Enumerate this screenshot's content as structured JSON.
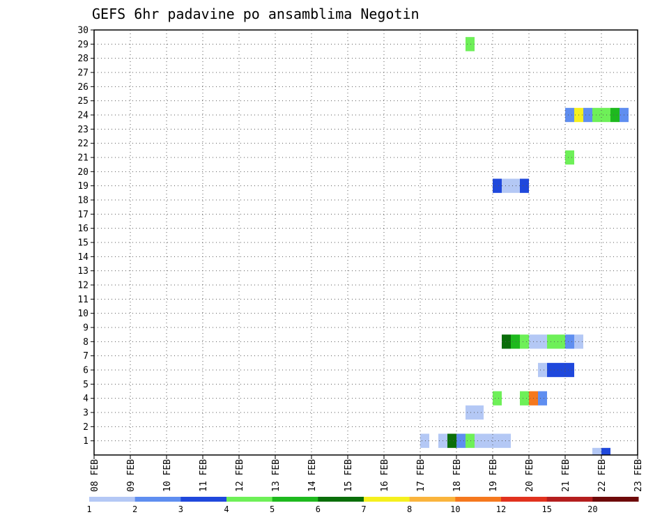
{
  "colors": {
    "frame": "#000000",
    "grid": "#555555",
    "background": "#ffffff"
  },
  "chart_data": {
    "type": "heatmap",
    "title": "GEFS 6hr padavine po ansamblima Negotin",
    "xlabel": "",
    "ylabel": "",
    "x_ticks": [
      "08 FEB",
      "09 FEB",
      "10 FEB",
      "11 FEB",
      "12 FEB",
      "13 FEB",
      "14 FEB",
      "15 FEB",
      "16 FEB",
      "17 FEB",
      "18 FEB",
      "19 FEB",
      "20 FEB",
      "21 FEB",
      "22 FEB",
      "23 FEB"
    ],
    "x_range_days": [
      0,
      15
    ],
    "y_ticks": [
      "1",
      "2",
      "3",
      "4",
      "5",
      "6",
      "7",
      "8",
      "9",
      "10",
      "11",
      "12",
      "13",
      "14",
      "15",
      "16",
      "17",
      "18",
      "19",
      "20",
      "21",
      "22",
      "23",
      "24",
      "25",
      "26",
      "27",
      "28",
      "29",
      "30"
    ],
    "y_range": [
      0,
      30
    ],
    "grid": true,
    "legend_position": "bottom",
    "legend": {
      "labels": [
        "1",
        "2",
        "3",
        "4",
        "5",
        "6",
        "7",
        "8",
        "10",
        "12",
        "15",
        "20"
      ],
      "colors": [
        "#b4c8f5",
        "#5f8ef0",
        "#1f48dc",
        "#6ef058",
        "#1eb91e",
        "#0a6e0a",
        "#f5f01e",
        "#fab43c",
        "#f5781e",
        "#e1321e",
        "#b41e1e",
        "#6e0a0a"
      ]
    },
    "cells": [
      {
        "member": 0,
        "start_day": 13.75,
        "end_day": 14.0,
        "color": "#b4c8f5"
      },
      {
        "member": 0,
        "start_day": 14.0,
        "end_day": 14.25,
        "color": "#1f48dc"
      },
      {
        "member": 1,
        "start_day": 9.0,
        "end_day": 9.25,
        "color": "#b4c8f5"
      },
      {
        "member": 1,
        "start_day": 9.5,
        "end_day": 9.75,
        "color": "#b4c8f5"
      },
      {
        "member": 1,
        "start_day": 9.75,
        "end_day": 10.0,
        "color": "#0a6e0a"
      },
      {
        "member": 1,
        "start_day": 10.0,
        "end_day": 10.25,
        "color": "#5f8ef0"
      },
      {
        "member": 1,
        "start_day": 10.25,
        "end_day": 10.5,
        "color": "#6ef058"
      },
      {
        "member": 1,
        "start_day": 10.5,
        "end_day": 11.5,
        "color": "#b4c8f5"
      },
      {
        "member": 3,
        "start_day": 10.25,
        "end_day": 10.75,
        "color": "#b4c8f5"
      },
      {
        "member": 4,
        "start_day": 11.0,
        "end_day": 11.25,
        "color": "#6ef058"
      },
      {
        "member": 4,
        "start_day": 11.75,
        "end_day": 12.0,
        "color": "#6ef058"
      },
      {
        "member": 4,
        "start_day": 12.0,
        "end_day": 12.25,
        "color": "#f5781e"
      },
      {
        "member": 4,
        "start_day": 12.25,
        "end_day": 12.5,
        "color": "#5f8ef0"
      },
      {
        "member": 6,
        "start_day": 12.25,
        "end_day": 12.5,
        "color": "#b4c8f5"
      },
      {
        "member": 6,
        "start_day": 12.5,
        "end_day": 13.25,
        "color": "#1f48dc"
      },
      {
        "member": 8,
        "start_day": 11.25,
        "end_day": 11.5,
        "color": "#0a6e0a"
      },
      {
        "member": 8,
        "start_day": 11.5,
        "end_day": 11.75,
        "color": "#1eb91e"
      },
      {
        "member": 8,
        "start_day": 11.75,
        "end_day": 12.0,
        "color": "#6ef058"
      },
      {
        "member": 8,
        "start_day": 12.0,
        "end_day": 12.5,
        "color": "#b4c8f5"
      },
      {
        "member": 8,
        "start_day": 12.5,
        "end_day": 13.0,
        "color": "#6ef058"
      },
      {
        "member": 8,
        "start_day": 13.0,
        "end_day": 13.25,
        "color": "#5f8ef0"
      },
      {
        "member": 8,
        "start_day": 13.25,
        "end_day": 13.5,
        "color": "#b4c8f5"
      },
      {
        "member": 19,
        "start_day": 11.0,
        "end_day": 11.25,
        "color": "#1f48dc"
      },
      {
        "member": 19,
        "start_day": 11.25,
        "end_day": 11.75,
        "color": "#b4c8f5"
      },
      {
        "member": 19,
        "start_day": 11.75,
        "end_day": 12.0,
        "color": "#1f48dc"
      },
      {
        "member": 21,
        "start_day": 13.0,
        "end_day": 13.25,
        "color": "#6ef058"
      },
      {
        "member": 24,
        "start_day": 13.0,
        "end_day": 13.25,
        "color": "#5f8ef0"
      },
      {
        "member": 24,
        "start_day": 13.25,
        "end_day": 13.5,
        "color": "#f5f01e"
      },
      {
        "member": 24,
        "start_day": 13.5,
        "end_day": 13.75,
        "color": "#5f8ef0"
      },
      {
        "member": 24,
        "start_day": 13.75,
        "end_day": 14.25,
        "color": "#6ef058"
      },
      {
        "member": 24,
        "start_day": 14.25,
        "end_day": 14.5,
        "color": "#1eb91e"
      },
      {
        "member": 24,
        "start_day": 14.5,
        "end_day": 14.75,
        "color": "#5f8ef0"
      },
      {
        "member": 29,
        "start_day": 10.25,
        "end_day": 10.5,
        "color": "#6ef058"
      }
    ]
  }
}
